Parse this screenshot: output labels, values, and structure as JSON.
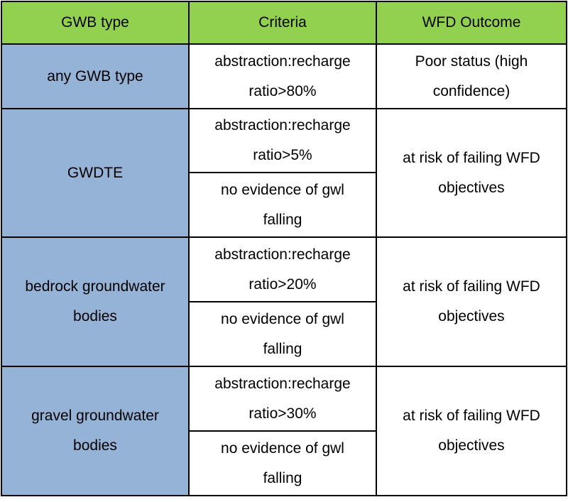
{
  "header": {
    "col1": "GWB type",
    "col2": "Criteria",
    "col3": "WFD Outcome"
  },
  "rows": [
    {
      "type": "any GWB type",
      "criteria": [
        "abstraction:recharge ratio>80%"
      ],
      "outcome": "Poor status (high confidence)"
    },
    {
      "type": "GWDTE",
      "criteria": [
        "abstraction:recharge ratio>5%",
        "no evidence of gwl falling"
      ],
      "outcome": "at risk of failing WFD objectives"
    },
    {
      "type": "bedrock groundwater bodies",
      "criteria": [
        "abstraction:recharge ratio>20%",
        "no evidence of gwl falling"
      ],
      "outcome": "at risk of failing WFD objectives"
    },
    {
      "type": "gravel groundwater bodies",
      "criteria": [
        "abstraction:recharge ratio>30%",
        "no evidence of gwl falling"
      ],
      "outcome": "at risk of failing WFD objectives"
    }
  ],
  "colors": {
    "header_bg": "#92d050",
    "type_bg": "#95b3d7",
    "border": "#000000"
  }
}
